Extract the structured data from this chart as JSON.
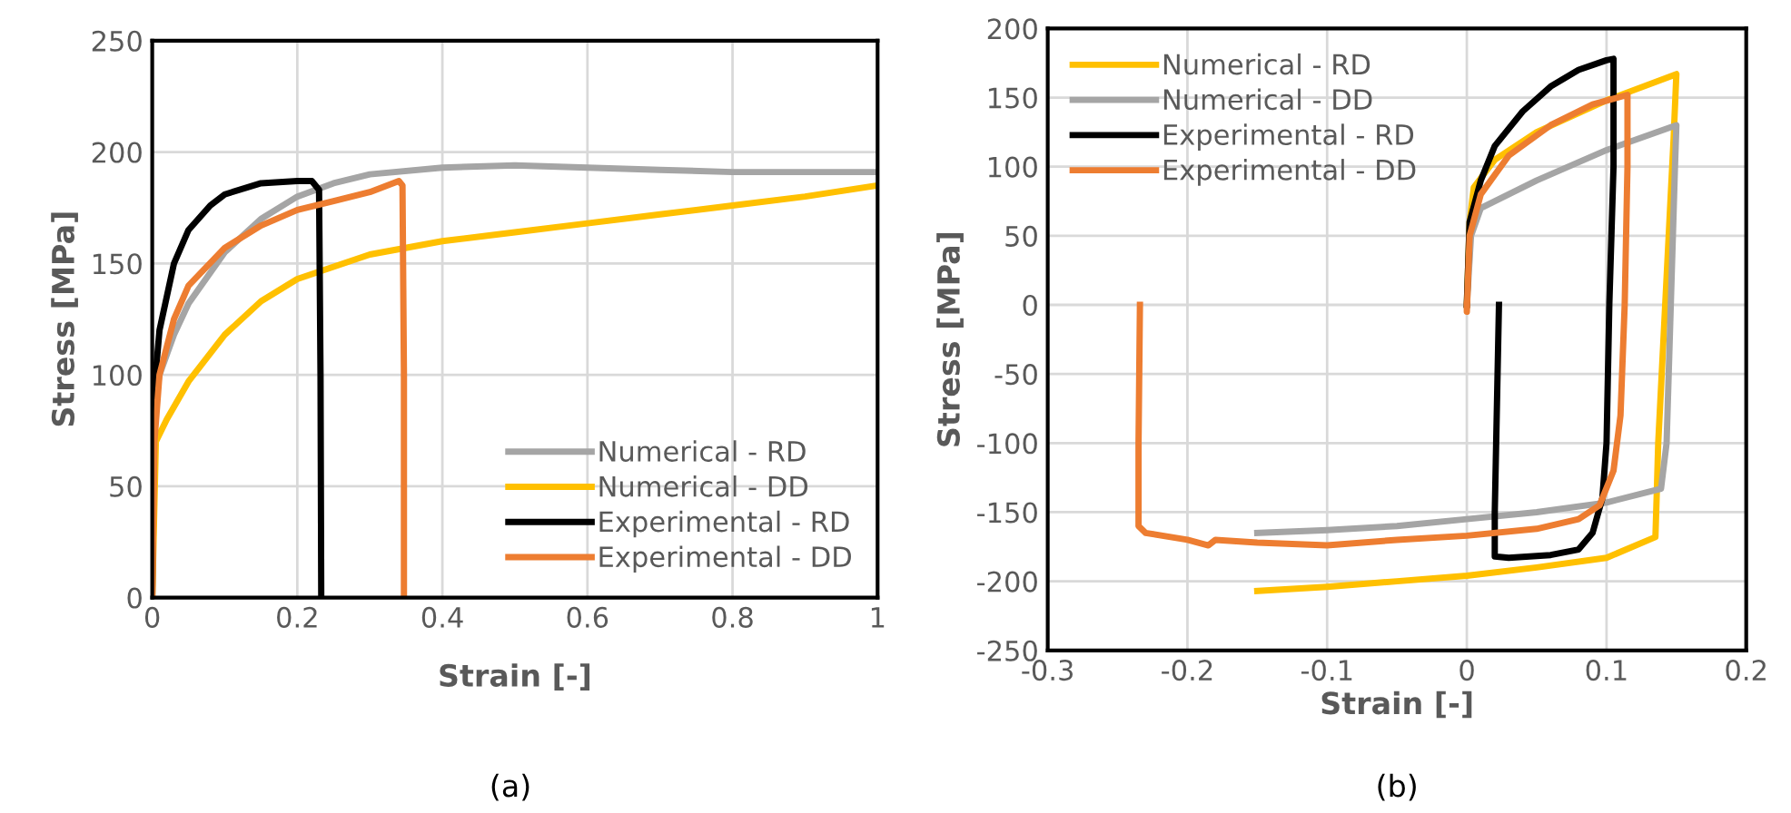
{
  "chart_data": [
    {
      "type": "line",
      "xlabel": "Strain [-]",
      "ylabel": "Stress [MPa]",
      "annotations": [
        "(a)"
      ],
      "xlim": [
        0,
        1
      ],
      "xticks": [
        0,
        0.2,
        0.4,
        0.6,
        0.8,
        1
      ],
      "ylim": [
        0,
        250
      ],
      "yticks": [
        0,
        50,
        100,
        150,
        200,
        250
      ],
      "grid": true,
      "legend": "bottom right",
      "series": [
        {
          "name": "Numerical - RD",
          "color": "#a5a5a5",
          "x": [
            0,
            0.01,
            0.03,
            0.05,
            0.1,
            0.15,
            0.2,
            0.25,
            0.3,
            0.4,
            0.5,
            0.6,
            0.7,
            0.8,
            0.9,
            1.0
          ],
          "values": [
            80,
            100,
            118,
            132,
            155,
            170,
            180,
            186,
            190,
            193,
            194,
            193,
            192,
            191,
            191,
            191
          ]
        },
        {
          "name": "Numerical - DD",
          "color": "#ffc000",
          "x": [
            0,
            0.005,
            0.02,
            0.05,
            0.1,
            0.15,
            0.2,
            0.3,
            0.4,
            0.5,
            0.6,
            0.7,
            0.8,
            0.9,
            1.0
          ],
          "values": [
            0,
            70,
            80,
            97,
            118,
            133,
            143,
            154,
            160,
            164,
            168,
            172,
            176,
            180,
            185
          ]
        },
        {
          "name": "Experimental - RD",
          "color": "#000000",
          "x": [
            0,
            0.002,
            0.01,
            0.03,
            0.05,
            0.08,
            0.1,
            0.15,
            0.2,
            0.22,
            0.23,
            0.232,
            0.233
          ],
          "values": [
            0,
            90,
            120,
            150,
            165,
            176,
            181,
            186,
            187,
            187,
            183,
            100,
            0
          ]
        },
        {
          "name": "Experimental - DD",
          "color": "#ed7d31",
          "x": [
            0,
            0.003,
            0.01,
            0.03,
            0.05,
            0.1,
            0.15,
            0.2,
            0.25,
            0.3,
            0.34,
            0.345,
            0.347,
            0.347
          ],
          "values": [
            0,
            70,
            100,
            125,
            140,
            157,
            167,
            174,
            178,
            182,
            187,
            185,
            100,
            0
          ]
        }
      ]
    },
    {
      "type": "line",
      "xlabel": "Strain [-]",
      "ylabel": "Stress [MPa]",
      "annotations": [
        "(b)"
      ],
      "xlim": [
        -0.3,
        0.2
      ],
      "xticks": [
        -0.3,
        -0.2,
        -0.1,
        0,
        0.1,
        0.2
      ],
      "ylim": [
        -250,
        200
      ],
      "yticks": [
        -250,
        -200,
        -150,
        -100,
        -50,
        0,
        50,
        100,
        150,
        200
      ],
      "grid": true,
      "legend": "top left",
      "series": [
        {
          "name": "Numerical - RD",
          "color": "#ffc000",
          "x": [
            0,
            0.002,
            0.005,
            0.02,
            0.05,
            0.1,
            0.15,
            0.148,
            0.137,
            0.136,
            0.135,
            0.1,
            0.05,
            0,
            -0.05,
            -0.1,
            -0.15
          ],
          "values": [
            0,
            60,
            85,
            105,
            125,
            148,
            167,
            120,
            -100,
            -135,
            -168,
            -183,
            -190,
            -196,
            -200,
            -204,
            -207
          ]
        },
        {
          "name": "Numerical - DD",
          "color": "#a5a5a5",
          "x": [
            0,
            0.003,
            0.01,
            0.05,
            0.1,
            0.15,
            0.149,
            0.143,
            0.139,
            0.1,
            0.05,
            0,
            -0.05,
            -0.1,
            -0.15
          ],
          "values": [
            0,
            50,
            70,
            90,
            112,
            130,
            100,
            -100,
            -133,
            -143,
            -150,
            -155,
            -160,
            -163,
            -165
          ]
        },
        {
          "name": "Experimental - RD",
          "color": "#000000",
          "x": [
            0,
            0.002,
            0.01,
            0.02,
            0.04,
            0.06,
            0.08,
            0.1,
            0.105,
            0.105,
            0.102,
            0.1,
            0.097,
            0.09,
            0.08,
            0.06,
            0.03,
            0.02,
            0.02,
            0.022,
            0.023
          ],
          "values": [
            0,
            60,
            90,
            115,
            140,
            158,
            170,
            177,
            178,
            100,
            0,
            -100,
            -140,
            -165,
            -177,
            -181,
            -183,
            -182,
            -150,
            -50,
            0
          ]
        },
        {
          "name": "Experimental - DD",
          "color": "#ed7d31",
          "x": [
            0,
            0,
            0.002,
            0.01,
            0.03,
            0.06,
            0.09,
            0.115,
            0.115,
            0.113,
            0.11,
            0.105,
            0.095,
            0.08,
            0.05,
            0,
            -0.05,
            -0.1,
            -0.15,
            -0.18,
            -0.185,
            -0.2,
            -0.23,
            -0.235,
            -0.235,
            -0.234
          ],
          "values": [
            0,
            -5,
            50,
            80,
            108,
            130,
            145,
            152,
            100,
            0,
            -80,
            -120,
            -145,
            -155,
            -162,
            -167,
            -170,
            -174,
            -172,
            -170,
            -174,
            -170,
            -165,
            -160,
            -100,
            0
          ]
        }
      ]
    }
  ]
}
